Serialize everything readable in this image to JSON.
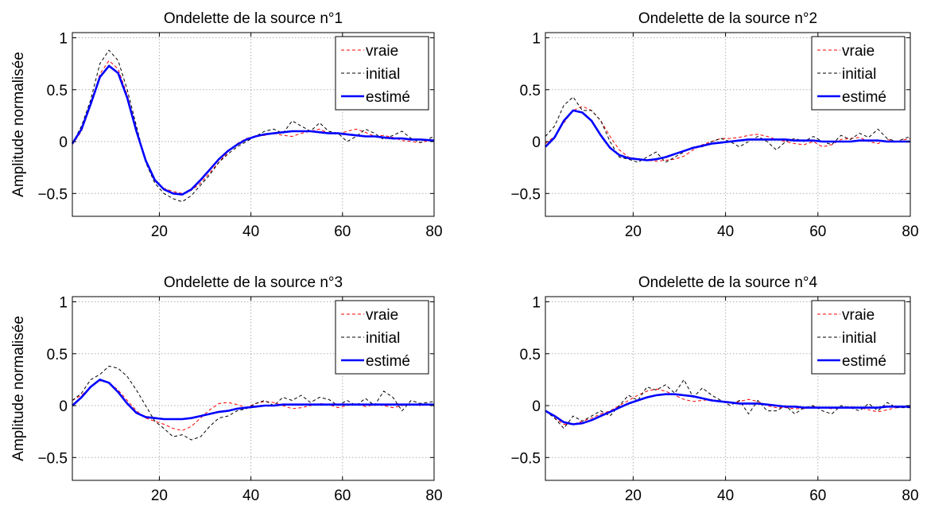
{
  "chart_data": [
    {
      "type": "line",
      "title": "Ondelette de la source n°1",
      "ylabel": "Amplitude normalisée",
      "xlabel": "",
      "xlim": [
        1,
        80
      ],
      "ylim": [
        -0.72,
        1.05
      ],
      "xticks": [
        20,
        40,
        60,
        80
      ],
      "yticks": [
        -0.5,
        0,
        0.5,
        1
      ],
      "xtick_labels": [
        "20",
        "40",
        "60",
        "80"
      ],
      "ytick_labels": [
        "−0.5",
        "0",
        "0.5",
        "1"
      ],
      "grid": true,
      "legend_position": "top-right",
      "x": [
        1,
        3,
        5,
        7,
        9,
        11,
        13,
        15,
        17,
        19,
        21,
        23,
        25,
        27,
        29,
        31,
        33,
        35,
        37,
        39,
        41,
        43,
        45,
        47,
        49,
        51,
        53,
        55,
        57,
        59,
        61,
        63,
        65,
        67,
        69,
        71,
        73,
        75,
        77,
        80
      ],
      "series": [
        {
          "name": "vraie",
          "color": "#ff0000",
          "dash": "dashed",
          "values": [
            -0.03,
            0.1,
            0.35,
            0.65,
            0.78,
            0.7,
            0.45,
            0.12,
            -0.18,
            -0.38,
            -0.45,
            -0.48,
            -0.5,
            -0.47,
            -0.4,
            -0.3,
            -0.2,
            -0.1,
            -0.02,
            0.03,
            0.05,
            0.06,
            0.08,
            0.06,
            0.05,
            0.08,
            0.1,
            0.12,
            0.08,
            0.07,
            0.1,
            0.12,
            0.09,
            0.05,
            0.06,
            0.04,
            0.01,
            0.0,
            -0.01,
            0.02
          ]
        },
        {
          "name": "initial",
          "color": "#000000",
          "dash": "dashed",
          "values": [
            -0.02,
            0.15,
            0.4,
            0.75,
            0.88,
            0.78,
            0.5,
            0.15,
            -0.2,
            -0.4,
            -0.5,
            -0.55,
            -0.58,
            -0.52,
            -0.42,
            -0.32,
            -0.2,
            -0.12,
            -0.05,
            0.0,
            0.05,
            0.1,
            0.12,
            0.08,
            0.2,
            0.15,
            0.1,
            0.18,
            0.1,
            0.08,
            0.0,
            0.05,
            0.12,
            0.08,
            0.02,
            0.06,
            0.1,
            0.03,
            -0.01,
            0.05
          ]
        },
        {
          "name": "estimé",
          "color": "#0000ff",
          "dash": "solid",
          "values": [
            -0.02,
            0.12,
            0.36,
            0.62,
            0.73,
            0.66,
            0.42,
            0.1,
            -0.18,
            -0.37,
            -0.46,
            -0.5,
            -0.51,
            -0.46,
            -0.37,
            -0.27,
            -0.17,
            -0.09,
            -0.03,
            0.02,
            0.05,
            0.07,
            0.08,
            0.09,
            0.1,
            0.1,
            0.1,
            0.09,
            0.08,
            0.08,
            0.07,
            0.06,
            0.05,
            0.05,
            0.04,
            0.03,
            0.03,
            0.02,
            0.02,
            0.01
          ]
        }
      ]
    },
    {
      "type": "line",
      "title": "Ondelette de la source n°2",
      "ylabel": "",
      "xlabel": "",
      "xlim": [
        1,
        80
      ],
      "ylim": [
        -0.72,
        1.05
      ],
      "xticks": [
        20,
        40,
        60,
        80
      ],
      "yticks": [
        -0.5,
        0,
        0.5,
        1
      ],
      "xtick_labels": [
        "20",
        "40",
        "60",
        "80"
      ],
      "ytick_labels": [
        "−0.5",
        "0",
        "0.5",
        "1"
      ],
      "grid": true,
      "legend_position": "top-right",
      "x": [
        1,
        3,
        5,
        7,
        9,
        11,
        13,
        15,
        17,
        19,
        21,
        23,
        25,
        27,
        29,
        31,
        33,
        35,
        37,
        39,
        41,
        43,
        45,
        47,
        49,
        51,
        53,
        55,
        57,
        59,
        61,
        63,
        65,
        67,
        69,
        71,
        73,
        75,
        77,
        80
      ],
      "series": [
        {
          "name": "vraie",
          "color": "#ff0000",
          "dash": "dashed",
          "values": [
            -0.02,
            0.05,
            0.18,
            0.3,
            0.34,
            0.3,
            0.2,
            0.05,
            -0.08,
            -0.15,
            -0.17,
            -0.18,
            -0.19,
            -0.18,
            -0.17,
            -0.14,
            -0.08,
            -0.03,
            0.0,
            0.03,
            0.03,
            0.04,
            0.06,
            0.07,
            0.05,
            0.02,
            0.0,
            -0.02,
            -0.03,
            0.0,
            -0.05,
            -0.03,
            0.02,
            0.03,
            0.04,
            0.0,
            -0.02,
            0.02,
            0.0,
            0.03
          ]
        },
        {
          "name": "initial",
          "color": "#000000",
          "dash": "dashed",
          "values": [
            0.05,
            0.15,
            0.35,
            0.43,
            0.3,
            0.3,
            0.2,
            0.0,
            -0.15,
            -0.17,
            -0.2,
            -0.15,
            -0.1,
            -0.2,
            -0.15,
            -0.1,
            -0.05,
            -0.05,
            0.0,
            0.03,
            0.0,
            -0.05,
            0.0,
            0.05,
            0.0,
            -0.08,
            0.0,
            0.03,
            0.0,
            0.05,
            0.0,
            -0.03,
            0.06,
            0.02,
            0.08,
            0.04,
            0.12,
            0.03,
            0.0,
            0.05
          ]
        },
        {
          "name": "estimé",
          "color": "#0000ff",
          "dash": "solid",
          "values": [
            -0.05,
            0.04,
            0.2,
            0.3,
            0.28,
            0.2,
            0.06,
            -0.06,
            -0.13,
            -0.16,
            -0.17,
            -0.18,
            -0.17,
            -0.15,
            -0.12,
            -0.09,
            -0.06,
            -0.04,
            -0.02,
            -0.01,
            0.0,
            0.01,
            0.02,
            0.02,
            0.02,
            0.02,
            0.02,
            0.01,
            0.01,
            0.01,
            0.0,
            0.0,
            0.0,
            0.0,
            0.01,
            0.01,
            0.01,
            0.0,
            0.0,
            0.0
          ]
        }
      ]
    },
    {
      "type": "line",
      "title": "Ondelette de la source n°3",
      "ylabel": "Amplitude normalisée",
      "xlabel": "",
      "xlim": [
        1,
        80
      ],
      "ylim": [
        -0.72,
        1.05
      ],
      "xticks": [
        20,
        40,
        60,
        80
      ],
      "yticks": [
        -0.5,
        0,
        0.5,
        1
      ],
      "xtick_labels": [
        "20",
        "40",
        "60",
        "80"
      ],
      "ytick_labels": [
        "−0.5",
        "0",
        "0.5",
        "1"
      ],
      "grid": true,
      "legend_position": "top-right",
      "x": [
        1,
        3,
        5,
        7,
        9,
        11,
        13,
        15,
        17,
        19,
        21,
        23,
        25,
        27,
        29,
        31,
        33,
        35,
        37,
        39,
        41,
        43,
        45,
        47,
        49,
        51,
        53,
        55,
        57,
        59,
        61,
        63,
        65,
        67,
        69,
        71,
        73,
        75,
        77,
        80
      ],
      "series": [
        {
          "name": "vraie",
          "color": "#ff0000",
          "dash": "dashed",
          "values": [
            0.05,
            0.1,
            0.18,
            0.24,
            0.22,
            0.15,
            0.05,
            -0.05,
            -0.12,
            -0.15,
            -0.18,
            -0.22,
            -0.24,
            -0.2,
            -0.12,
            -0.04,
            0.02,
            0.03,
            0.01,
            -0.02,
            0.02,
            0.04,
            0.03,
            0.0,
            -0.03,
            -0.02,
            0.0,
            0.02,
            0.01,
            -0.02,
            0.0,
            0.02,
            -0.01,
            0.01,
            0.0,
            -0.02,
            0.0,
            0.02,
            0.0,
            0.01
          ]
        },
        {
          "name": "initial",
          "color": "#000000",
          "dash": "dashed",
          "values": [
            0.05,
            0.12,
            0.25,
            0.3,
            0.38,
            0.36,
            0.28,
            0.15,
            0.0,
            -0.15,
            -0.22,
            -0.3,
            -0.28,
            -0.33,
            -0.3,
            -0.2,
            -0.12,
            -0.1,
            -0.05,
            -0.03,
            0.02,
            0.05,
            0.0,
            0.08,
            0.05,
            0.1,
            0.03,
            0.08,
            0.06,
            0.0,
            0.05,
            0.0,
            0.07,
            0.0,
            0.14,
            0.08,
            -0.05,
            0.05,
            0.02,
            0.04
          ]
        },
        {
          "name": "estimé",
          "color": "#0000ff",
          "dash": "solid",
          "values": [
            0.0,
            0.08,
            0.18,
            0.25,
            0.22,
            0.13,
            0.02,
            -0.07,
            -0.11,
            -0.12,
            -0.13,
            -0.13,
            -0.13,
            -0.12,
            -0.1,
            -0.08,
            -0.06,
            -0.05,
            -0.03,
            -0.02,
            -0.01,
            0.0,
            0.0,
            0.01,
            0.01,
            0.01,
            0.01,
            0.01,
            0.01,
            0.01,
            0.01,
            0.01,
            0.01,
            0.01,
            0.01,
            0.01,
            0.01,
            0.01,
            0.01,
            0.01
          ]
        }
      ]
    },
    {
      "type": "line",
      "title": "Ondelette de la source n°4",
      "ylabel": "",
      "xlabel": "",
      "xlim": [
        1,
        80
      ],
      "ylim": [
        -0.72,
        1.05
      ],
      "xticks": [
        20,
        40,
        60,
        80
      ],
      "yticks": [
        -0.5,
        0,
        0.5,
        1
      ],
      "xtick_labels": [
        "20",
        "40",
        "60",
        "80"
      ],
      "ytick_labels": [
        "−0.5",
        "0",
        "0.5",
        "1"
      ],
      "grid": true,
      "legend_position": "top-right",
      "x": [
        1,
        3,
        5,
        7,
        9,
        11,
        13,
        15,
        17,
        19,
        21,
        23,
        25,
        27,
        29,
        31,
        33,
        35,
        37,
        39,
        41,
        43,
        45,
        47,
        49,
        51,
        53,
        55,
        57,
        59,
        61,
        63,
        65,
        67,
        69,
        71,
        73,
        75,
        77,
        80
      ],
      "series": [
        {
          "name": "vraie",
          "color": "#ff0000",
          "dash": "dashed",
          "values": [
            -0.05,
            -0.12,
            -0.18,
            -0.18,
            -0.15,
            -0.12,
            -0.08,
            -0.05,
            0.0,
            0.05,
            0.1,
            0.14,
            0.16,
            0.14,
            0.1,
            0.06,
            0.04,
            0.05,
            0.06,
            0.04,
            0.02,
            0.04,
            0.06,
            0.04,
            0.0,
            -0.02,
            -0.02,
            -0.03,
            -0.03,
            -0.01,
            -0.02,
            -0.03,
            -0.02,
            -0.01,
            -0.02,
            -0.04,
            -0.06,
            -0.04,
            -0.02,
            -0.01
          ]
        },
        {
          "name": "initial",
          "color": "#000000",
          "dash": "dashed",
          "values": [
            -0.05,
            -0.12,
            -0.22,
            -0.1,
            -0.15,
            -0.1,
            -0.05,
            -0.1,
            0.0,
            0.1,
            0.05,
            0.18,
            0.15,
            0.2,
            0.12,
            0.25,
            0.08,
            0.17,
            0.1,
            0.05,
            0.0,
            0.05,
            -0.08,
            0.05,
            -0.05,
            -0.05,
            0.0,
            -0.08,
            -0.02,
            0.0,
            -0.05,
            -0.08,
            0.0,
            -0.02,
            -0.05,
            0.02,
            -0.05,
            0.03,
            -0.02,
            -0.02
          ]
        },
        {
          "name": "estimé",
          "color": "#0000ff",
          "dash": "solid",
          "values": [
            -0.05,
            -0.1,
            -0.16,
            -0.18,
            -0.17,
            -0.14,
            -0.1,
            -0.06,
            -0.02,
            0.02,
            0.05,
            0.08,
            0.1,
            0.11,
            0.11,
            0.1,
            0.09,
            0.07,
            0.05,
            0.04,
            0.03,
            0.02,
            0.02,
            0.02,
            0.01,
            0.0,
            -0.01,
            -0.01,
            -0.02,
            -0.02,
            -0.02,
            -0.02,
            -0.02,
            -0.02,
            -0.02,
            -0.02,
            -0.02,
            -0.01,
            -0.01,
            -0.01
          ]
        }
      ]
    }
  ]
}
